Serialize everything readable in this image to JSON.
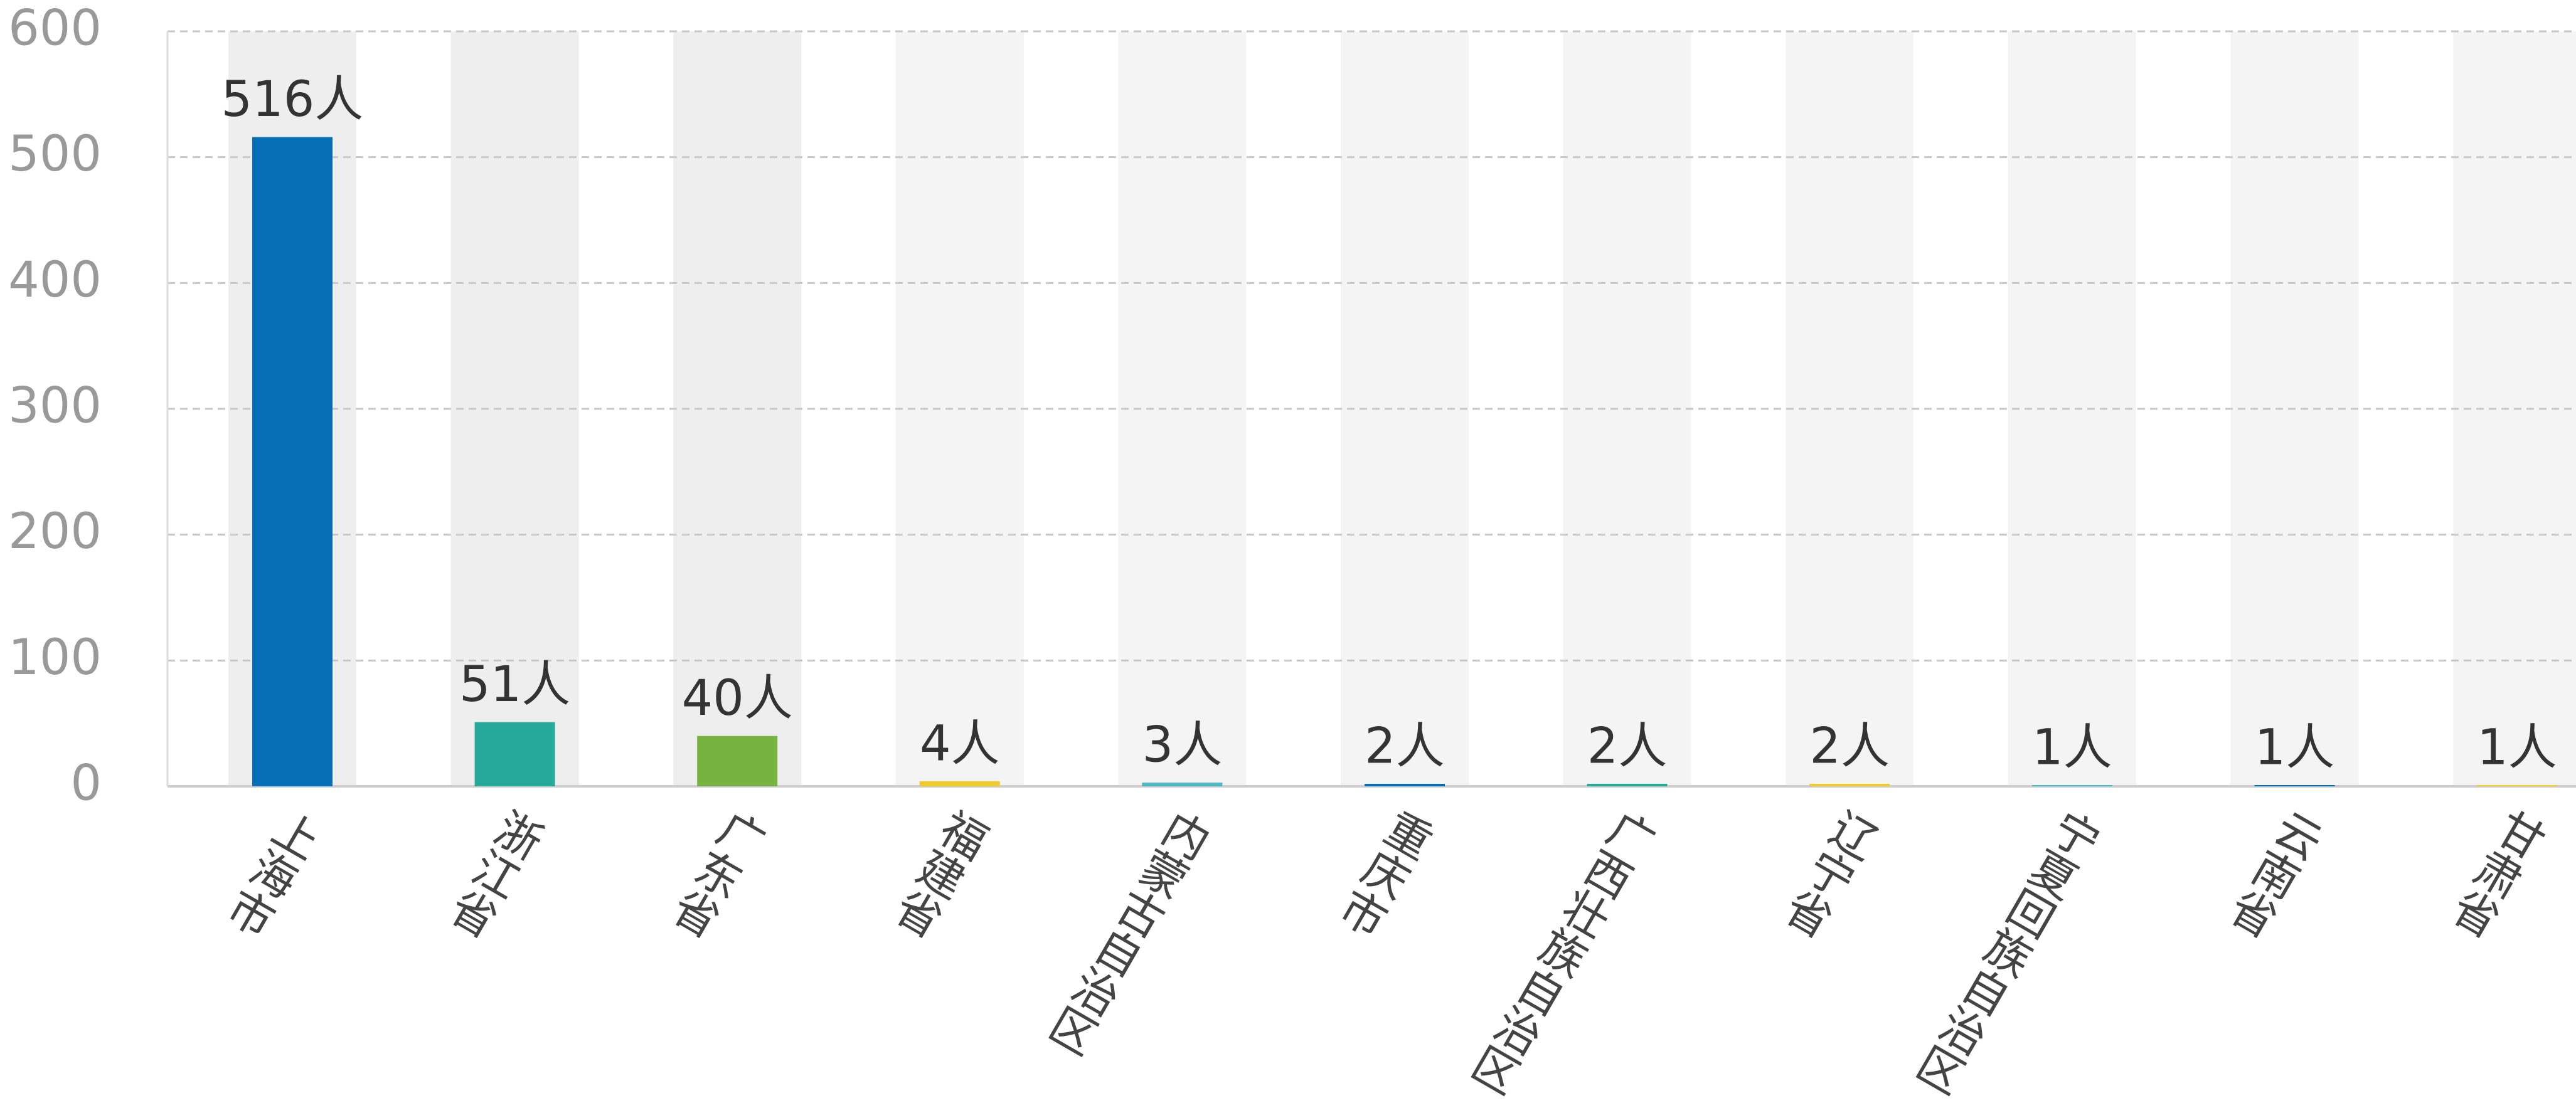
{
  "chart_data": {
    "type": "bar",
    "categories": [
      "上海市",
      "浙江省",
      "广东省",
      "福建省",
      "内蒙古自治区",
      "重庆市",
      "广西壮族自治区",
      "辽宁省",
      "宁夏回族自治区",
      "云南省",
      "甘肃省"
    ],
    "values": [
      516,
      51,
      40,
      4,
      3,
      2,
      2,
      2,
      1,
      1,
      1
    ],
    "value_labels": [
      "516人",
      "51人",
      "40人",
      "4人",
      "3人",
      "2人",
      "2人",
      "2人",
      "1人",
      "1人",
      "1人"
    ],
    "colors": [
      "#0570b5",
      "#26a99a",
      "#76b340",
      "#f0c92c",
      "#4eb8c6",
      "#0570b5",
      "#26a99a",
      "#f0c92c",
      "#4eb8c6",
      "#0570b5",
      "#f0c92c"
    ],
    "ylim": [
      0,
      600
    ],
    "yticks": [
      0,
      100,
      200,
      300,
      400,
      500,
      600
    ],
    "grid": true
  }
}
